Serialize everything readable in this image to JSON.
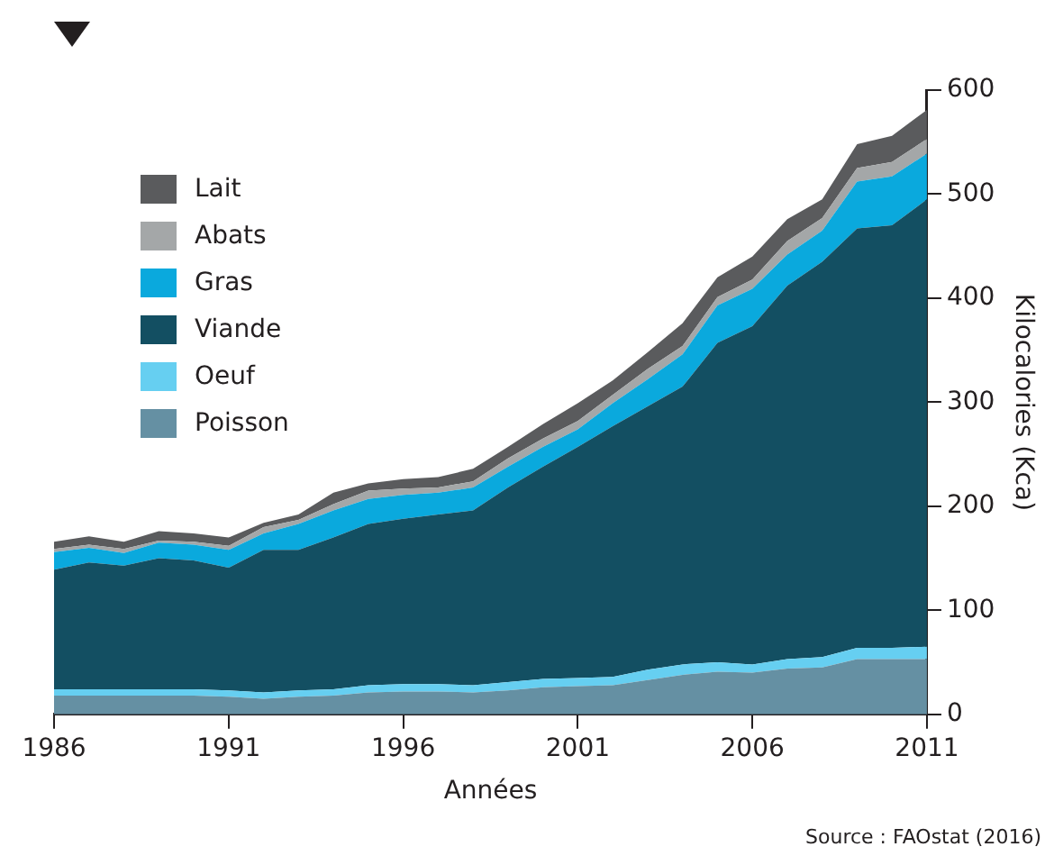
{
  "chart_data": {
    "type": "area",
    "stacked": true,
    "xlabel": "Années",
    "ylabel": "Kilocalories (Kca)",
    "annotations": [
      "Source : FAOstat (2016)"
    ],
    "x": [
      1986,
      1987,
      1988,
      1989,
      1990,
      1991,
      1992,
      1993,
      1994,
      1995,
      1996,
      1997,
      1998,
      1999,
      2000,
      2001,
      2002,
      2003,
      2004,
      2005,
      2006,
      2007,
      2008,
      2009,
      2010,
      2011
    ],
    "series": [
      {
        "name": "Poisson",
        "color": "#6590a3",
        "values": [
          18,
          18,
          18,
          18,
          18,
          17,
          15,
          17,
          18,
          21,
          22,
          22,
          21,
          23,
          26,
          27,
          28,
          33,
          38,
          41,
          40,
          44,
          45,
          53,
          53,
          53
        ]
      },
      {
        "name": "Oeuf",
        "color": "#66cff1",
        "values": [
          6,
          6,
          6,
          6,
          6,
          6,
          6,
          6,
          6,
          7,
          7,
          7,
          7,
          8,
          8,
          8,
          8,
          10,
          10,
          9,
          8,
          9,
          10,
          11,
          11,
          12
        ]
      },
      {
        "name": "Viande",
        "color": "#134f62",
        "values": [
          115,
          122,
          119,
          126,
          124,
          118,
          137,
          135,
          146,
          155,
          159,
          163,
          168,
          187,
          204,
          222,
          241,
          253,
          267,
          307,
          325,
          359,
          380,
          403,
          406,
          430
        ]
      },
      {
        "name": "Gras",
        "color": "#0aa9dd",
        "values": [
          17,
          14,
          12,
          15,
          15,
          17,
          16,
          25,
          26,
          24,
          23,
          21,
          22,
          20,
          19,
          17,
          22,
          26,
          31,
          36,
          36,
          30,
          30,
          45,
          47,
          44
        ]
      },
      {
        "name": "Abats",
        "color": "#a4a7a8",
        "values": [
          3,
          3,
          4,
          2,
          3,
          4,
          6,
          4,
          6,
          8,
          6,
          5,
          6,
          8,
          8,
          8,
          8,
          10,
          8,
          8,
          9,
          13,
          12,
          13,
          14,
          14
        ]
      },
      {
        "name": "Lait",
        "color": "#5a5b5d",
        "values": [
          7,
          8,
          7,
          9,
          8,
          8,
          4,
          5,
          11,
          7,
          9,
          10,
          12,
          11,
          14,
          17,
          14,
          16,
          22,
          19,
          22,
          21,
          18,
          23,
          25,
          28
        ]
      }
    ],
    "xlim": [
      1986,
      2011
    ],
    "xticks": [
      1986,
      1991,
      1996,
      2001,
      2006,
      2011
    ],
    "ylim": [
      0,
      600
    ],
    "yticks": [
      0,
      100,
      200,
      300,
      400,
      500,
      600
    ],
    "grid": false,
    "legend": "top left"
  }
}
